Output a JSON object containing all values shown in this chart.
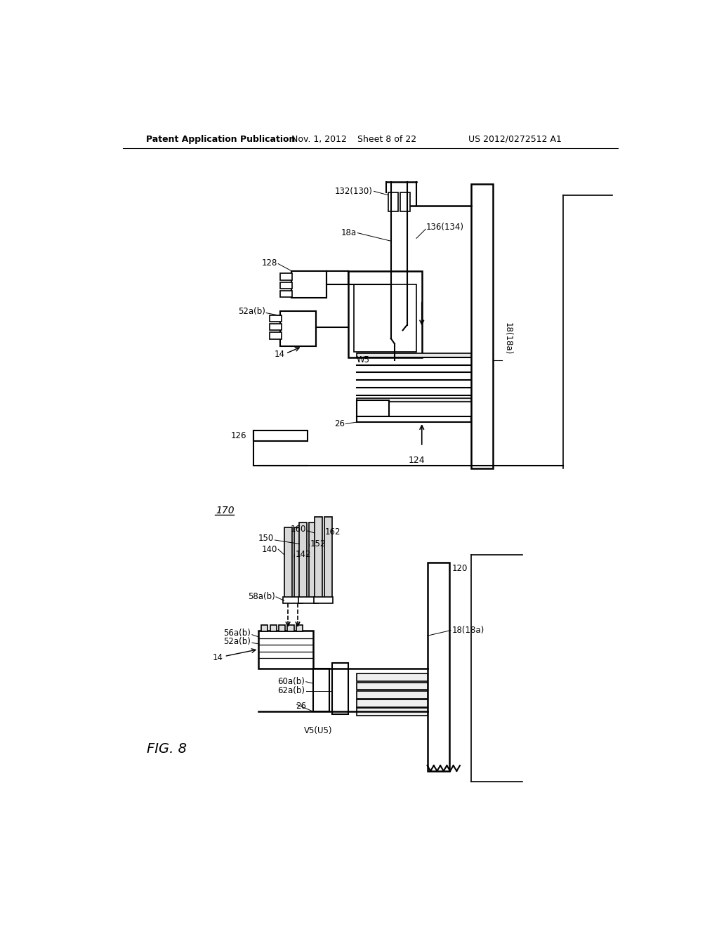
{
  "bg_color": "#ffffff",
  "header_text": "Patent Application Publication",
  "header_date": "Nov. 1, 2012",
  "header_sheet": "Sheet 8 of 22",
  "header_patent": "US 2012/0272512 A1"
}
